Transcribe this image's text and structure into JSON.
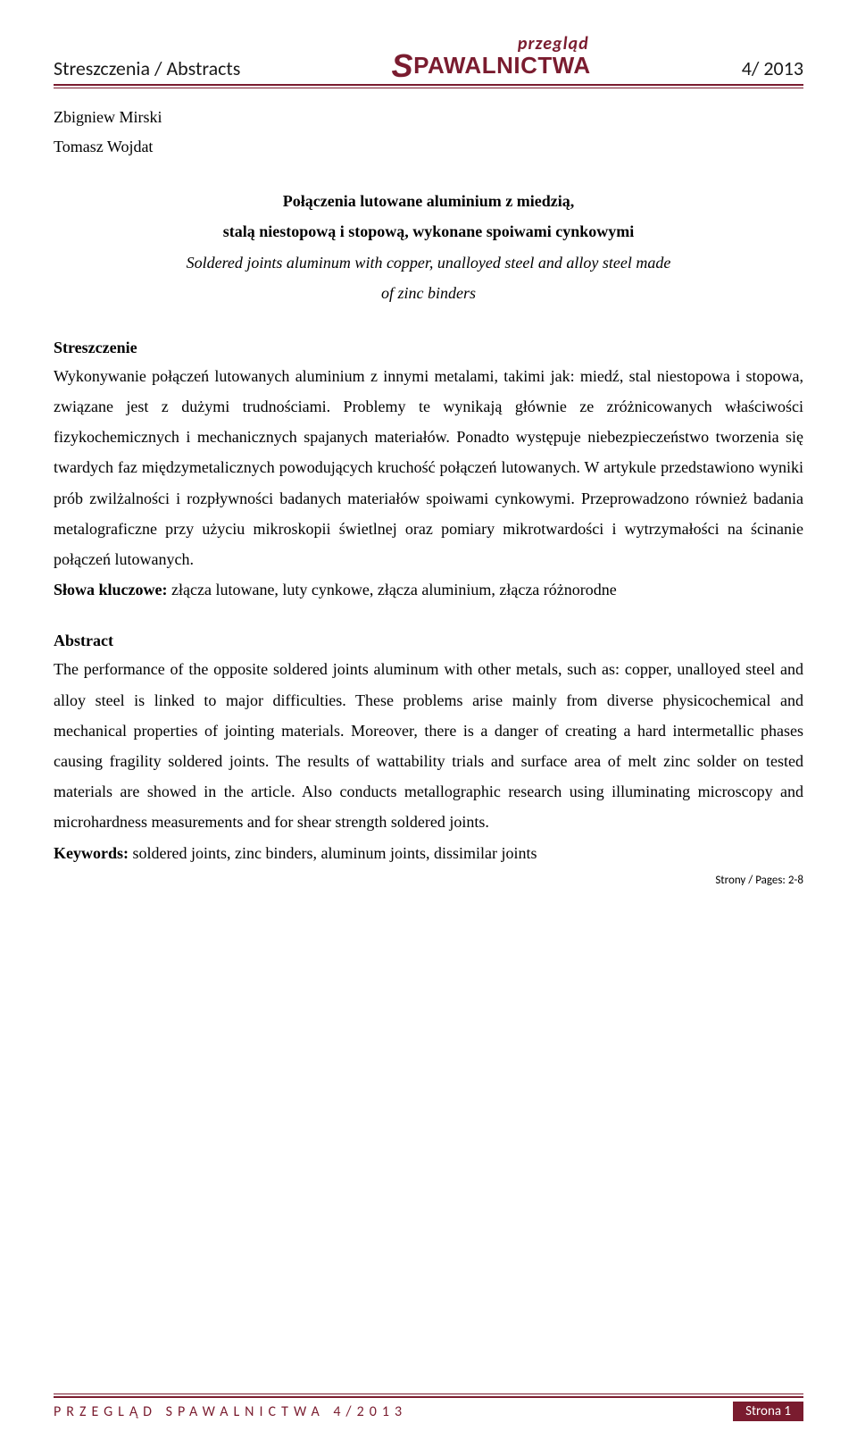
{
  "header": {
    "left": "Streszczenia / Abstracts",
    "brand_top": "przegląd",
    "brand_bottom_rest": "PAWALNICTWA",
    "right": "4/ 2013"
  },
  "authors": {
    "a1": "Zbigniew Mirski",
    "a2": "Tomasz Wojdat"
  },
  "title": {
    "pl_line1": "Połączenia lutowane aluminium z miedzią,",
    "pl_line2": "stalą niestopową i stopową, wykonane spoiwami cynkowymi",
    "en_line1": "Soldered joints aluminum with copper, unalloyed steel and alloy steel made",
    "en_line2": "of zinc binders"
  },
  "streszczenie": {
    "heading": "Streszczenie",
    "body": "Wykonywanie połączeń lutowanych aluminium z innymi metalami, takimi jak: miedź, stal niestopowa i stopowa, związane jest z dużymi trudnościami. Problemy te wynikają głównie ze zróżnicowanych właściwości fizykochemicznych i mechanicznych spajanych materiałów. Ponadto występuje niebezpieczeństwo tworzenia się twardych faz międzymetalicznych powodujących kruchość połączeń lutowanych. W artykule przedstawiono wyniki prób zwilżalności i rozpływności badanych materiałów spoiwami cynkowymi. Przeprowadzono również badania metalograficzne przy użyciu mikroskopii świetlnej oraz pomiary mikrotwardości i wytrzymałości na ścinanie połączeń lutowanych.",
    "kw_label": "Słowa kluczowe: ",
    "kw": "złącza lutowane, luty cynkowe, złącza aluminium, złącza różnorodne"
  },
  "abstract": {
    "heading": "Abstract",
    "body": "The performance of the opposite soldered joints aluminum with other metals, such as: copper, unalloyed steel and alloy steel is linked to major difficulties. These problems arise mainly from diverse physicochemical and mechanical properties of jointing materials. Moreover, there is a danger of creating a hard intermetallic phases causing fragility soldered joints. The results of wattability trials and surface area of melt zinc solder on tested materials are showed in the article. Also conducts metallographic research using illuminating microscopy and microhardness measurements and for shear strength soldered joints.",
    "kw_label": "Keywords: ",
    "kw": "soldered joints, zinc binders, aluminum joints, dissimilar joints"
  },
  "pages": "Strony / Pages: 2-8",
  "footer": {
    "left": "PRZEGLĄD SPAWALNICTWA 4/2013",
    "right": "Strona 1"
  },
  "colors": {
    "brand": "#7a1c2f",
    "text": "#000000",
    "bg": "#ffffff",
    "footer_badge_text": "#ffffff"
  },
  "typography": {
    "body_font": "Times New Roman",
    "ui_font": "Calibri",
    "body_size_pt": 13,
    "header_size_pt": 16,
    "line_height": 1.9
  }
}
